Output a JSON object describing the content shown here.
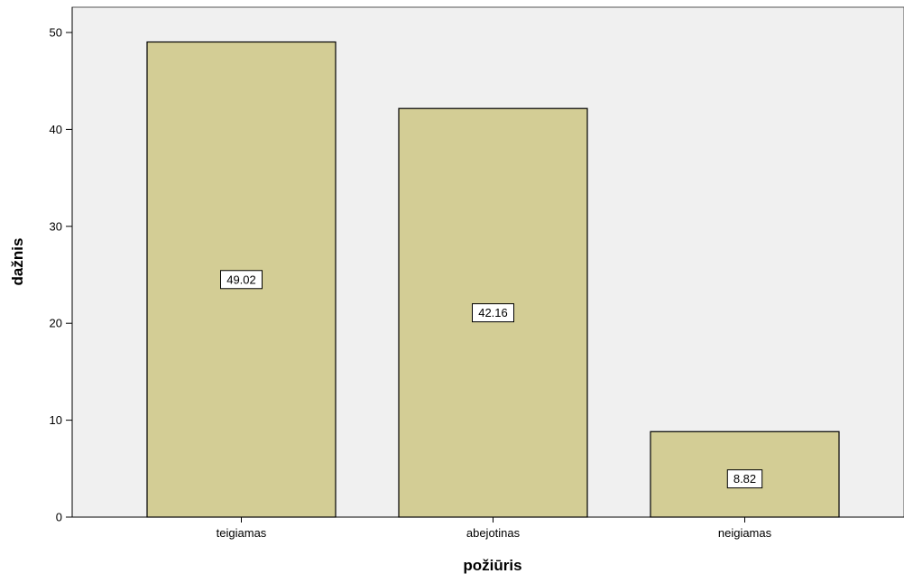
{
  "chart_data": {
    "type": "bar",
    "categories": [
      "teigiamas",
      "abejotinas",
      "neigiamas"
    ],
    "values": [
      49.02,
      42.16,
      8.82
    ],
    "data_labels": [
      "49.02",
      "42.16",
      "8.82"
    ],
    "title": "",
    "xlabel": "požiūris",
    "ylabel": "dažnis",
    "ylim": [
      0,
      50
    ],
    "yticks": [
      0,
      10,
      20,
      30,
      40,
      50
    ],
    "grid": false,
    "legend": "none",
    "colors": {
      "plot_background": "#f0f0f0",
      "bar_fill": "#d3cd95",
      "bar_stroke": "#000000",
      "axis": "#000000",
      "label_box_fill": "#ffffff"
    }
  }
}
